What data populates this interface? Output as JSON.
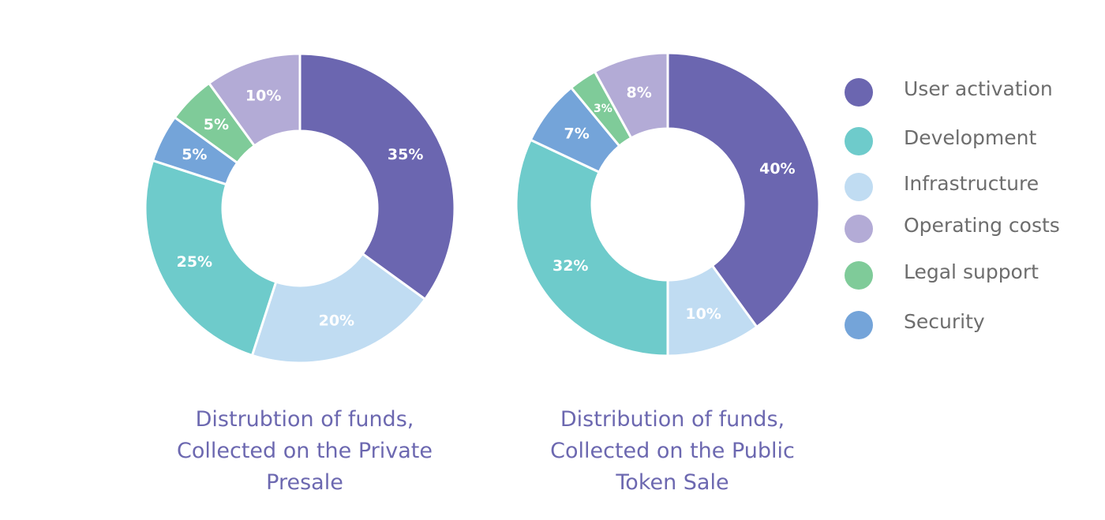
{
  "legend": {
    "items": [
      {
        "label": "User activation",
        "color": "#6b66b0"
      },
      {
        "label": "Development",
        "color": "#6ecbcb"
      },
      {
        "label": "Infrastructure",
        "color": "#c0dcf2"
      },
      {
        "label": "Operating costs",
        "color": "#b3abd6"
      },
      {
        "label": "Legal support",
        "color": "#7fcb99"
      },
      {
        "label": "Security",
        "color": "#74a4d9"
      }
    ]
  },
  "chart_data": [
    {
      "type": "pie",
      "title_lines": [
        "Distrubtion of funds,",
        "Collected on the Private",
        "Presale"
      ],
      "slices": [
        {
          "category": "User activation",
          "value": 35,
          "label": "35%"
        },
        {
          "category": "Infrastructure",
          "value": 20,
          "label": "20%"
        },
        {
          "category": "Development",
          "value": 25,
          "label": "25%"
        },
        {
          "category": "Security",
          "value": 5,
          "label": "5%"
        },
        {
          "category": "Legal support",
          "value": 5,
          "label": "5%"
        },
        {
          "category": "Operating costs",
          "value": 10,
          "label": "10%"
        }
      ],
      "donut": true,
      "start": "top, clockwise"
    },
    {
      "type": "pie",
      "title_lines": [
        "Distribution of funds,",
        "Collected on the Public",
        "Token Sale"
      ],
      "slices": [
        {
          "category": "User activation",
          "value": 40,
          "label": "40%"
        },
        {
          "category": "Infrastructure",
          "value": 10,
          "label": "10%"
        },
        {
          "category": "Development",
          "value": 32,
          "label": "32%"
        },
        {
          "category": "Security",
          "value": 7,
          "label": "7%"
        },
        {
          "category": "Legal support",
          "value": 3,
          "label": "3%"
        },
        {
          "category": "Operating costs",
          "value": 8,
          "label": "8%"
        }
      ],
      "donut": true,
      "start": "top, clockwise"
    }
  ]
}
